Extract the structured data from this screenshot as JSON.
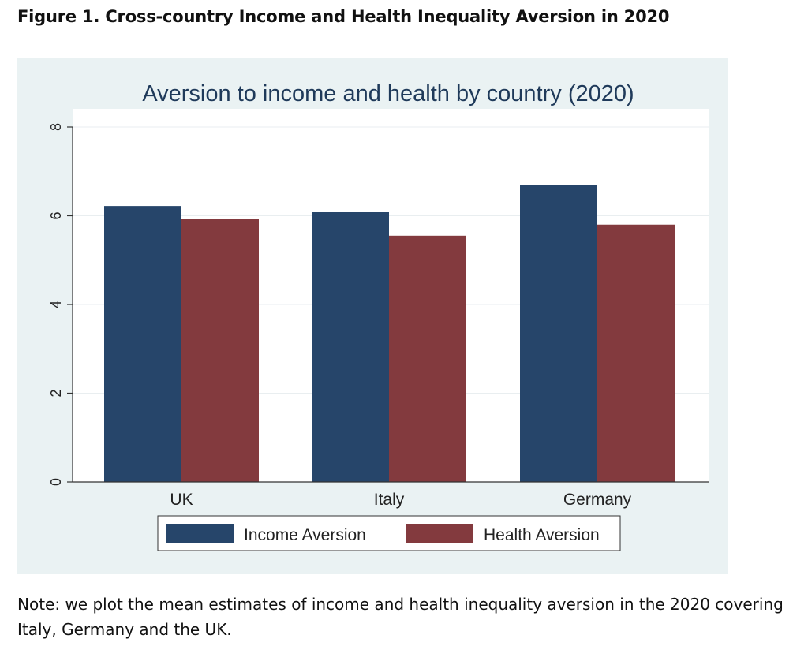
{
  "figure_heading": "Figure 1. Cross-country Income and Health Inequality Aversion in 2020",
  "note": "Note: we plot the mean estimates of income and health inequality aversion in the 2020 covering Italy, Germany and the UK.",
  "colors": {
    "income": "#26456a",
    "health": "#833a3e",
    "frame_background": "#eaf2f3",
    "plot_background": "#ffffff",
    "title": "#1f3a5a"
  },
  "chart_data": {
    "type": "bar",
    "title": "Aversion to income and health by country (2020)",
    "xlabel": "",
    "ylabel": "",
    "categories": [
      "UK",
      "Italy",
      "Germany"
    ],
    "series": [
      {
        "name": "Income Aversion",
        "values": [
          6.22,
          6.08,
          6.7
        ]
      },
      {
        "name": "Health Aversion",
        "values": [
          5.92,
          5.55,
          5.8
        ]
      }
    ],
    "ylim": [
      0,
      8
    ],
    "yticks": [
      "0",
      "2",
      "4",
      "6",
      "8"
    ],
    "grid": true,
    "legend_position": "bottom"
  }
}
